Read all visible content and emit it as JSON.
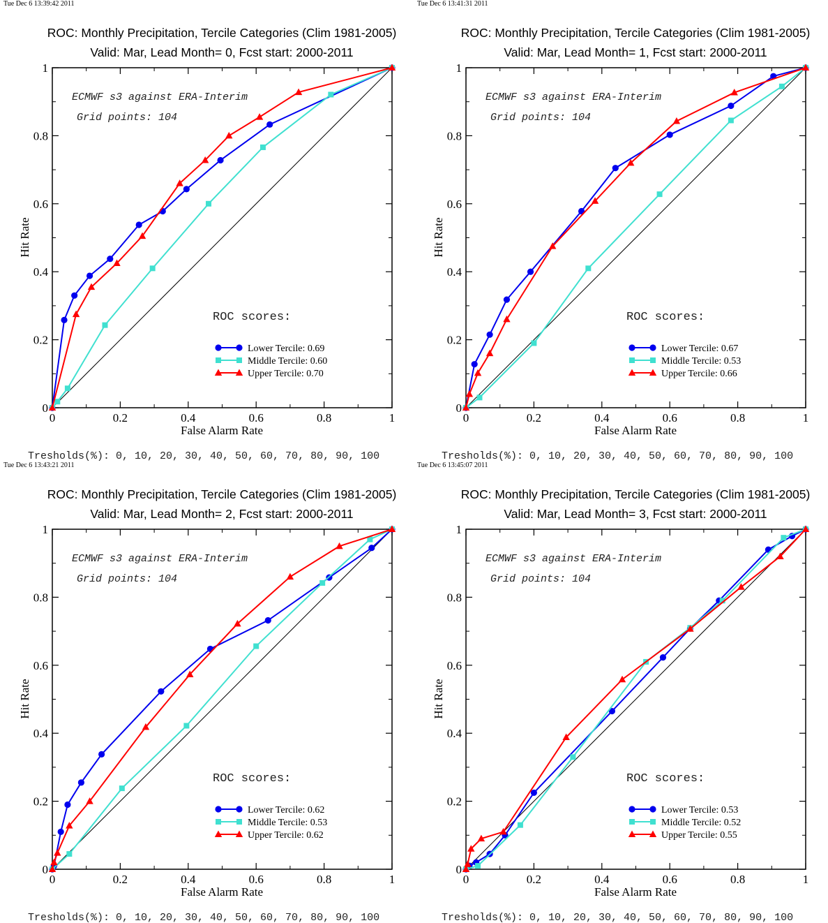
{
  "chart_data": [
    {
      "type": "line",
      "timestamp": "Tue Dec  6 13:39:42 2011",
      "title": "ROC: Monthly Precipitation, Tercile Categories (Clim 1981-2005)",
      "subtitle": "Valid: Mar, Lead Month= 0, Fcst start: 2000-2011",
      "xlabel": "False Alarm Rate",
      "ylabel": "Hit Rate",
      "xlim": [
        0,
        1
      ],
      "ylim": [
        0,
        1
      ],
      "xticks": [
        "0",
        "0.2",
        "0.4",
        "0.6",
        "0.8",
        "1"
      ],
      "yticks": [
        "0",
        "0.2",
        "0.4",
        "0.6",
        "0.8",
        "1"
      ],
      "annotation_1": "ECMWF s3 against ERA-Interim",
      "annotation_2": "Grid points:  104",
      "scores_title": "ROC scores:",
      "thresholds": "Tresholds(%): 0, 10, 20, 30, 40, 50, 60, 70, 80, 90, 100",
      "series": [
        {
          "name": "Lower Tercile: 0.69",
          "color": "#0000ee",
          "marker": "circle",
          "x": [
            0,
            0.035,
            0.065,
            0.11,
            0.17,
            0.255,
            0.325,
            0.395,
            0.495,
            0.64,
            1
          ],
          "y": [
            0,
            0.258,
            0.33,
            0.388,
            0.438,
            0.538,
            0.578,
            0.643,
            0.728,
            0.833,
            1
          ]
        },
        {
          "name": "Middle Tercile: 0.60",
          "color": "#40e0d0",
          "marker": "square",
          "x": [
            0,
            0.015,
            0.045,
            0.155,
            0.295,
            0.46,
            0.62,
            0.82,
            1
          ],
          "y": [
            0,
            0.018,
            0.057,
            0.243,
            0.41,
            0.6,
            0.766,
            0.921,
            1
          ]
        },
        {
          "name": "Upper Tercile: 0.70",
          "color": "#ff0000",
          "marker": "triangle",
          "x": [
            0,
            0.07,
            0.115,
            0.19,
            0.265,
            0.375,
            0.45,
            0.52,
            0.61,
            0.725,
            1
          ],
          "y": [
            0,
            0.275,
            0.355,
            0.425,
            0.505,
            0.66,
            0.728,
            0.8,
            0.855,
            0.928,
            1
          ]
        }
      ]
    },
    {
      "type": "line",
      "timestamp": "Tue Dec  6 13:41:31 2011",
      "title": "ROC: Monthly Precipitation, Tercile Categories (Clim 1981-2005)",
      "subtitle": "Valid: Mar, Lead Month= 1, Fcst start: 2000-2011",
      "xlabel": "False Alarm Rate",
      "ylabel": "Hit Rate",
      "xlim": [
        0,
        1
      ],
      "ylim": [
        0,
        1
      ],
      "xticks": [
        "0",
        "0.2",
        "0.4",
        "0.6",
        "0.8",
        "1"
      ],
      "yticks": [
        "0",
        "0.2",
        "0.4",
        "0.6",
        "0.8",
        "1"
      ],
      "annotation_1": "ECMWF s3 against ERA-Interim",
      "annotation_2": "Grid points:  104",
      "scores_title": "ROC scores:",
      "thresholds": "Tresholds(%): 0, 10, 20, 30, 40, 50, 60, 70, 80, 90, 100",
      "series": [
        {
          "name": "Lower Tercile: 0.67",
          "color": "#0000ee",
          "marker": "circle",
          "x": [
            0,
            0.025,
            0.07,
            0.12,
            0.19,
            0.34,
            0.44,
            0.6,
            0.78,
            0.905,
            1
          ],
          "y": [
            0,
            0.128,
            0.215,
            0.318,
            0.4,
            0.578,
            0.705,
            0.803,
            0.888,
            0.975,
            1
          ]
        },
        {
          "name": "Middle Tercile: 0.53",
          "color": "#40e0d0",
          "marker": "square",
          "x": [
            0,
            0.04,
            0.2,
            0.36,
            0.57,
            0.78,
            0.93,
            1
          ],
          "y": [
            0,
            0.03,
            0.19,
            0.41,
            0.628,
            0.845,
            0.945,
            1
          ]
        },
        {
          "name": "Upper Tercile: 0.66",
          "color": "#ff0000",
          "marker": "triangle",
          "x": [
            0,
            0.01,
            0.035,
            0.07,
            0.12,
            0.255,
            0.38,
            0.485,
            0.62,
            0.79,
            1
          ],
          "y": [
            0,
            0.04,
            0.102,
            0.16,
            0.26,
            0.475,
            0.608,
            0.72,
            0.843,
            0.927,
            1
          ]
        }
      ]
    },
    {
      "type": "line",
      "timestamp": "Tue Dec  6 13:43:21 2011",
      "title": "ROC: Monthly Precipitation, Tercile Categories (Clim 1981-2005)",
      "subtitle": "Valid: Mar, Lead Month= 2, Fcst start: 2000-2011",
      "xlabel": "False Alarm Rate",
      "ylabel": "Hit Rate",
      "xlim": [
        0,
        1
      ],
      "ylim": [
        0,
        1
      ],
      "xticks": [
        "0",
        "0.2",
        "0.4",
        "0.6",
        "0.8",
        "1"
      ],
      "yticks": [
        "0",
        "0.2",
        "0.4",
        "0.6",
        "0.8",
        "1"
      ],
      "annotation_1": "ECMWF s3 against ERA-Interim",
      "annotation_2": "Grid points:  104",
      "scores_title": "ROC scores:",
      "thresholds": "Tresholds(%): 0, 10, 20, 30, 40, 50, 60, 70, 80, 90, 100",
      "series": [
        {
          "name": "Lower Tercile: 0.62",
          "color": "#0000ee",
          "marker": "circle",
          "x": [
            0,
            0.005,
            0.025,
            0.045,
            0.085,
            0.145,
            0.32,
            0.465,
            0.635,
            0.815,
            0.94,
            1
          ],
          "y": [
            0,
            0.01,
            0.11,
            0.19,
            0.255,
            0.338,
            0.523,
            0.648,
            0.732,
            0.858,
            0.945,
            1
          ]
        },
        {
          "name": "Middle Tercile: 0.53",
          "color": "#40e0d0",
          "marker": "square",
          "x": [
            0,
            0.05,
            0.205,
            0.395,
            0.6,
            0.795,
            0.935,
            1
          ],
          "y": [
            0,
            0.045,
            0.238,
            0.422,
            0.656,
            0.842,
            0.97,
            1
          ]
        },
        {
          "name": "Upper Tercile: 0.62",
          "color": "#ff0000",
          "marker": "triangle",
          "x": [
            0,
            0.005,
            0.015,
            0.05,
            0.11,
            0.275,
            0.405,
            0.545,
            0.7,
            0.845,
            1
          ],
          "y": [
            0,
            0.02,
            0.048,
            0.128,
            0.2,
            0.418,
            0.573,
            0.722,
            0.86,
            0.95,
            1
          ]
        }
      ]
    },
    {
      "type": "line",
      "timestamp": "Tue Dec  6 13:45:07 2011",
      "title": "ROC: Monthly Precipitation, Tercile Categories (Clim 1981-2005)",
      "subtitle": "Valid: Mar, Lead Month= 3, Fcst start: 2000-2011",
      "xlabel": "False Alarm Rate",
      "ylabel": "Hit Rate",
      "xlim": [
        0,
        1
      ],
      "ylim": [
        0,
        1
      ],
      "xticks": [
        "0",
        "0.2",
        "0.4",
        "0.6",
        "0.8",
        "1"
      ],
      "yticks": [
        "0",
        "0.2",
        "0.4",
        "0.6",
        "0.8",
        "1"
      ],
      "annotation_1": "ECMWF s3 against ERA-Interim",
      "annotation_2": "Grid points:  104",
      "scores_title": "ROC scores:",
      "thresholds": "Tresholds(%): 0, 10, 20, 30, 40, 50, 60, 70, 80, 90, 100",
      "series": [
        {
          "name": "Lower Tercile: 0.53",
          "color": "#0000ee",
          "marker": "circle",
          "x": [
            0,
            0.01,
            0.03,
            0.07,
            0.115,
            0.2,
            0.43,
            0.58,
            0.66,
            0.745,
            0.89,
            0.96,
            1
          ],
          "y": [
            0,
            0.01,
            0.02,
            0.045,
            0.1,
            0.225,
            0.465,
            0.623,
            0.708,
            0.79,
            0.94,
            0.98,
            1
          ]
        },
        {
          "name": "Middle Tercile: 0.52",
          "color": "#40e0d0",
          "marker": "square",
          "x": [
            0,
            0.035,
            0.16,
            0.315,
            0.53,
            0.66,
            0.755,
            0.935,
            1
          ],
          "y": [
            0,
            0.01,
            0.13,
            0.33,
            0.61,
            0.71,
            0.79,
            0.975,
            1
          ]
        },
        {
          "name": "Upper Tercile: 0.55",
          "color": "#ff0000",
          "marker": "triangle",
          "x": [
            0,
            0.005,
            0.015,
            0.045,
            0.11,
            0.295,
            0.46,
            0.66,
            0.81,
            0.925,
            1
          ],
          "y": [
            0,
            0.015,
            0.06,
            0.09,
            0.11,
            0.388,
            0.558,
            0.707,
            0.83,
            0.92,
            1
          ]
        }
      ]
    }
  ]
}
